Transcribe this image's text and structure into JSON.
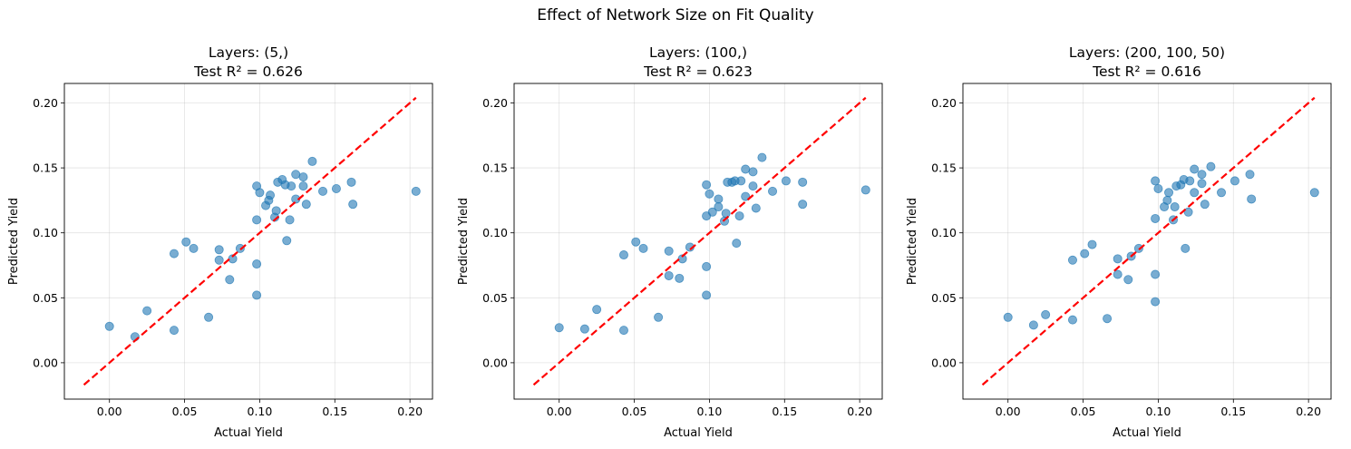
{
  "figure": {
    "suptitle": "Effect of Network Size on Fit Quality",
    "colors": {
      "points": "#1f77b4",
      "reference_line": "#ff0000",
      "grid": "#b0b0b0"
    }
  },
  "chart_data": [
    {
      "type": "scatter",
      "title": "Layers: (5,)",
      "subtitle": "Test R² = 0.626",
      "xlabel": "Actual Yield",
      "ylabel": "Predicted Yield",
      "xlim": [
        -0.03,
        0.215
      ],
      "ylim": [
        -0.028,
        0.215
      ],
      "xticks": [
        "0.00",
        "0.05",
        "0.10",
        "0.15",
        "0.20"
      ],
      "yticks": [
        "0.00",
        "0.05",
        "0.10",
        "0.15",
        "0.20"
      ],
      "grid": true,
      "reference_line": {
        "from": [
          -0.017,
          -0.017
        ],
        "to": [
          0.204,
          0.204
        ],
        "style": "dashed"
      },
      "points": [
        [
          0.0,
          0.028
        ],
        [
          0.017,
          0.02
        ],
        [
          0.025,
          0.04
        ],
        [
          0.043,
          0.084
        ],
        [
          0.043,
          0.025
        ],
        [
          0.051,
          0.093
        ],
        [
          0.056,
          0.088
        ],
        [
          0.066,
          0.035
        ],
        [
          0.073,
          0.079
        ],
        [
          0.073,
          0.087
        ],
        [
          0.08,
          0.064
        ],
        [
          0.082,
          0.08
        ],
        [
          0.087,
          0.088
        ],
        [
          0.098,
          0.136
        ],
        [
          0.098,
          0.11
        ],
        [
          0.098,
          0.076
        ],
        [
          0.098,
          0.052
        ],
        [
          0.1,
          0.131
        ],
        [
          0.104,
          0.121
        ],
        [
          0.106,
          0.125
        ],
        [
          0.107,
          0.129
        ],
        [
          0.11,
          0.112
        ],
        [
          0.111,
          0.117
        ],
        [
          0.112,
          0.139
        ],
        [
          0.115,
          0.141
        ],
        [
          0.117,
          0.137
        ],
        [
          0.118,
          0.094
        ],
        [
          0.12,
          0.11
        ],
        [
          0.121,
          0.136
        ],
        [
          0.124,
          0.145
        ],
        [
          0.124,
          0.126
        ],
        [
          0.129,
          0.143
        ],
        [
          0.129,
          0.136
        ],
        [
          0.131,
          0.122
        ],
        [
          0.135,
          0.155
        ],
        [
          0.142,
          0.132
        ],
        [
          0.151,
          0.134
        ],
        [
          0.161,
          0.139
        ],
        [
          0.162,
          0.122
        ],
        [
          0.204,
          0.132
        ]
      ]
    },
    {
      "type": "scatter",
      "title": "Layers: (100,)",
      "subtitle": "Test R² = 0.623",
      "xlabel": "Actual Yield",
      "ylabel": "Predicted Yield",
      "xlim": [
        -0.03,
        0.215
      ],
      "ylim": [
        -0.028,
        0.215
      ],
      "xticks": [
        "0.00",
        "0.05",
        "0.10",
        "0.15",
        "0.20"
      ],
      "yticks": [
        "0.00",
        "0.05",
        "0.10",
        "0.15",
        "0.20"
      ],
      "grid": true,
      "reference_line": {
        "from": [
          -0.017,
          -0.017
        ],
        "to": [
          0.204,
          0.204
        ],
        "style": "dashed"
      },
      "points": [
        [
          0.0,
          0.027
        ],
        [
          0.017,
          0.026
        ],
        [
          0.025,
          0.041
        ],
        [
          0.043,
          0.083
        ],
        [
          0.043,
          0.025
        ],
        [
          0.051,
          0.093
        ],
        [
          0.056,
          0.088
        ],
        [
          0.066,
          0.035
        ],
        [
          0.073,
          0.086
        ],
        [
          0.073,
          0.067
        ],
        [
          0.08,
          0.065
        ],
        [
          0.082,
          0.08
        ],
        [
          0.087,
          0.089
        ],
        [
          0.098,
          0.137
        ],
        [
          0.098,
          0.113
        ],
        [
          0.098,
          0.074
        ],
        [
          0.098,
          0.052
        ],
        [
          0.1,
          0.13
        ],
        [
          0.102,
          0.116
        ],
        [
          0.106,
          0.126
        ],
        [
          0.106,
          0.12
        ],
        [
          0.11,
          0.109
        ],
        [
          0.111,
          0.115
        ],
        [
          0.112,
          0.139
        ],
        [
          0.115,
          0.139
        ],
        [
          0.117,
          0.14
        ],
        [
          0.118,
          0.092
        ],
        [
          0.12,
          0.113
        ],
        [
          0.121,
          0.14
        ],
        [
          0.124,
          0.149
        ],
        [
          0.124,
          0.128
        ],
        [
          0.129,
          0.147
        ],
        [
          0.129,
          0.136
        ],
        [
          0.131,
          0.119
        ],
        [
          0.135,
          0.158
        ],
        [
          0.142,
          0.132
        ],
        [
          0.151,
          0.14
        ],
        [
          0.162,
          0.139
        ],
        [
          0.162,
          0.122
        ],
        [
          0.204,
          0.133
        ]
      ]
    },
    {
      "type": "scatter",
      "title": "Layers: (200, 100, 50)",
      "subtitle": "Test R² = 0.616",
      "xlabel": "Actual Yield",
      "ylabel": "Predicted Yield",
      "xlim": [
        -0.03,
        0.215
      ],
      "ylim": [
        -0.028,
        0.215
      ],
      "xticks": [
        "0.00",
        "0.05",
        "0.10",
        "0.15",
        "0.20"
      ],
      "yticks": [
        "0.00",
        "0.05",
        "0.10",
        "0.15",
        "0.20"
      ],
      "grid": true,
      "reference_line": {
        "from": [
          -0.017,
          -0.017
        ],
        "to": [
          0.204,
          0.204
        ],
        "style": "dashed"
      },
      "points": [
        [
          0.0,
          0.035
        ],
        [
          0.017,
          0.029
        ],
        [
          0.025,
          0.037
        ],
        [
          0.043,
          0.079
        ],
        [
          0.043,
          0.033
        ],
        [
          0.051,
          0.084
        ],
        [
          0.056,
          0.091
        ],
        [
          0.066,
          0.034
        ],
        [
          0.073,
          0.08
        ],
        [
          0.073,
          0.068
        ],
        [
          0.08,
          0.064
        ],
        [
          0.082,
          0.082
        ],
        [
          0.087,
          0.088
        ],
        [
          0.098,
          0.14
        ],
        [
          0.098,
          0.111
        ],
        [
          0.098,
          0.068
        ],
        [
          0.098,
          0.047
        ],
        [
          0.1,
          0.134
        ],
        [
          0.104,
          0.12
        ],
        [
          0.106,
          0.125
        ],
        [
          0.107,
          0.131
        ],
        [
          0.11,
          0.11
        ],
        [
          0.111,
          0.12
        ],
        [
          0.112,
          0.136
        ],
        [
          0.115,
          0.137
        ],
        [
          0.117,
          0.141
        ],
        [
          0.118,
          0.088
        ],
        [
          0.12,
          0.116
        ],
        [
          0.121,
          0.14
        ],
        [
          0.124,
          0.149
        ],
        [
          0.124,
          0.131
        ],
        [
          0.129,
          0.145
        ],
        [
          0.129,
          0.138
        ],
        [
          0.131,
          0.122
        ],
        [
          0.135,
          0.151
        ],
        [
          0.142,
          0.131
        ],
        [
          0.151,
          0.14
        ],
        [
          0.161,
          0.145
        ],
        [
          0.162,
          0.126
        ],
        [
          0.204,
          0.131
        ]
      ]
    }
  ]
}
